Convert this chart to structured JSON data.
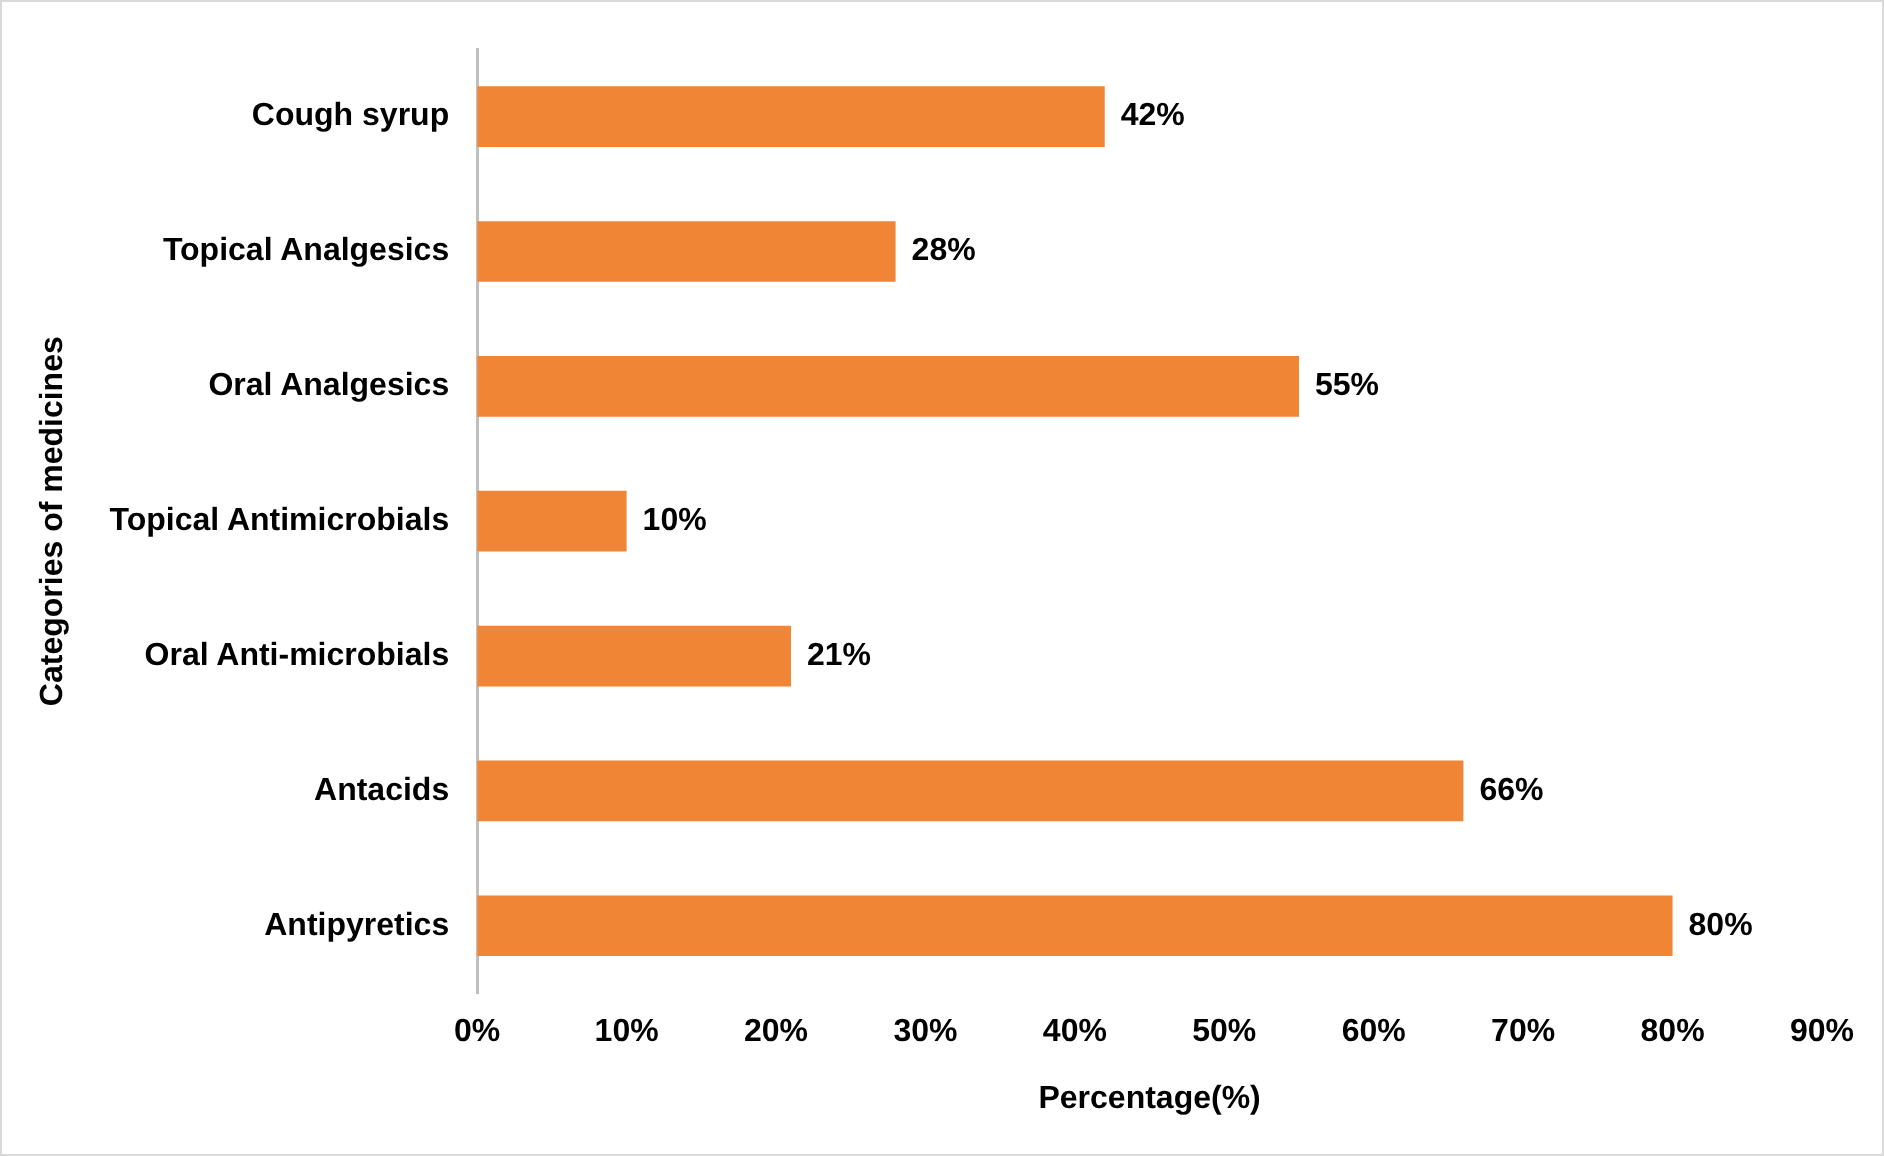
{
  "chart_data": {
    "type": "bar",
    "orientation": "horizontal",
    "xlabel": "Percentage(%)",
    "ylabel": "Categories of medicines",
    "categories": [
      "Cough syrup",
      "Topical Analgesics",
      "Oral Analgesics",
      "Topical Antimicrobials",
      "Oral Anti-microbials",
      "Antacids",
      "Antipyretics"
    ],
    "values": [
      42,
      28,
      55,
      10,
      21,
      66,
      80
    ],
    "value_labels": [
      "42%",
      "28%",
      "55%",
      "10%",
      "21%",
      "66%",
      "80%"
    ],
    "color": "#f08536",
    "xlim": [
      0,
      90
    ],
    "xticks": [
      {
        "value": 0,
        "label": "0%"
      },
      {
        "value": 10,
        "label": "10%"
      },
      {
        "value": 20,
        "label": "20%"
      },
      {
        "value": 30,
        "label": "30%"
      },
      {
        "value": 40,
        "label": "40%"
      },
      {
        "value": 50,
        "label": "50%"
      },
      {
        "value": 60,
        "label": "60%"
      },
      {
        "value": 70,
        "label": "70%"
      },
      {
        "value": 80,
        "label": "80%"
      },
      {
        "value": 90,
        "label": "90%"
      }
    ],
    "grid": false,
    "legend": false
  }
}
